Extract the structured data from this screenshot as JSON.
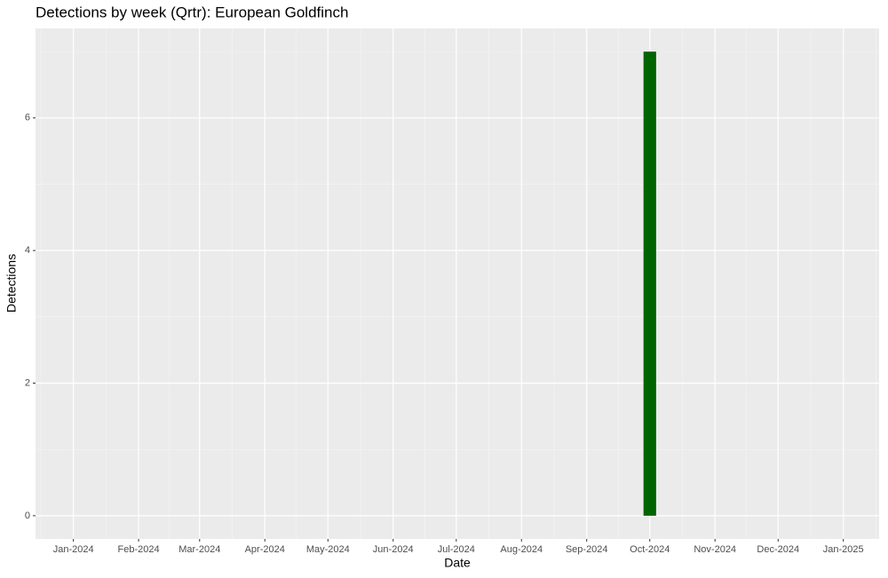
{
  "chart_data": {
    "type": "bar",
    "title": "Detections by week (Qrtr): European Goldfinch",
    "x_label": "Date",
    "y_label": "Detections",
    "x": [
      "2024-10"
    ],
    "values": [
      7
    ],
    "color": "#006400",
    "xlim": [
      "2023-12-14",
      "2025-01-18"
    ],
    "xticks": [
      {
        "value": "2024-01",
        "label": "Jan-2024"
      },
      {
        "value": "2024-02",
        "label": "Feb-2024"
      },
      {
        "value": "2024-03",
        "label": "Mar-2024"
      },
      {
        "value": "2024-04",
        "label": "Apr-2024"
      },
      {
        "value": "2024-05",
        "label": "May-2024"
      },
      {
        "value": "2024-06",
        "label": "Jun-2024"
      },
      {
        "value": "2024-07",
        "label": "Jul-2024"
      },
      {
        "value": "2024-08",
        "label": "Aug-2024"
      },
      {
        "value": "2024-09",
        "label": "Sep-2024"
      },
      {
        "value": "2024-10",
        "label": "Oct-2024"
      },
      {
        "value": "2024-11",
        "label": "Nov-2024"
      },
      {
        "value": "2024-12",
        "label": "Dec-2024"
      },
      {
        "value": "2025-01",
        "label": "Jan-2025"
      }
    ],
    "ylim": [
      -0.35,
      7.35
    ],
    "yticks": [
      0,
      2,
      4,
      6
    ],
    "grid": true
  }
}
